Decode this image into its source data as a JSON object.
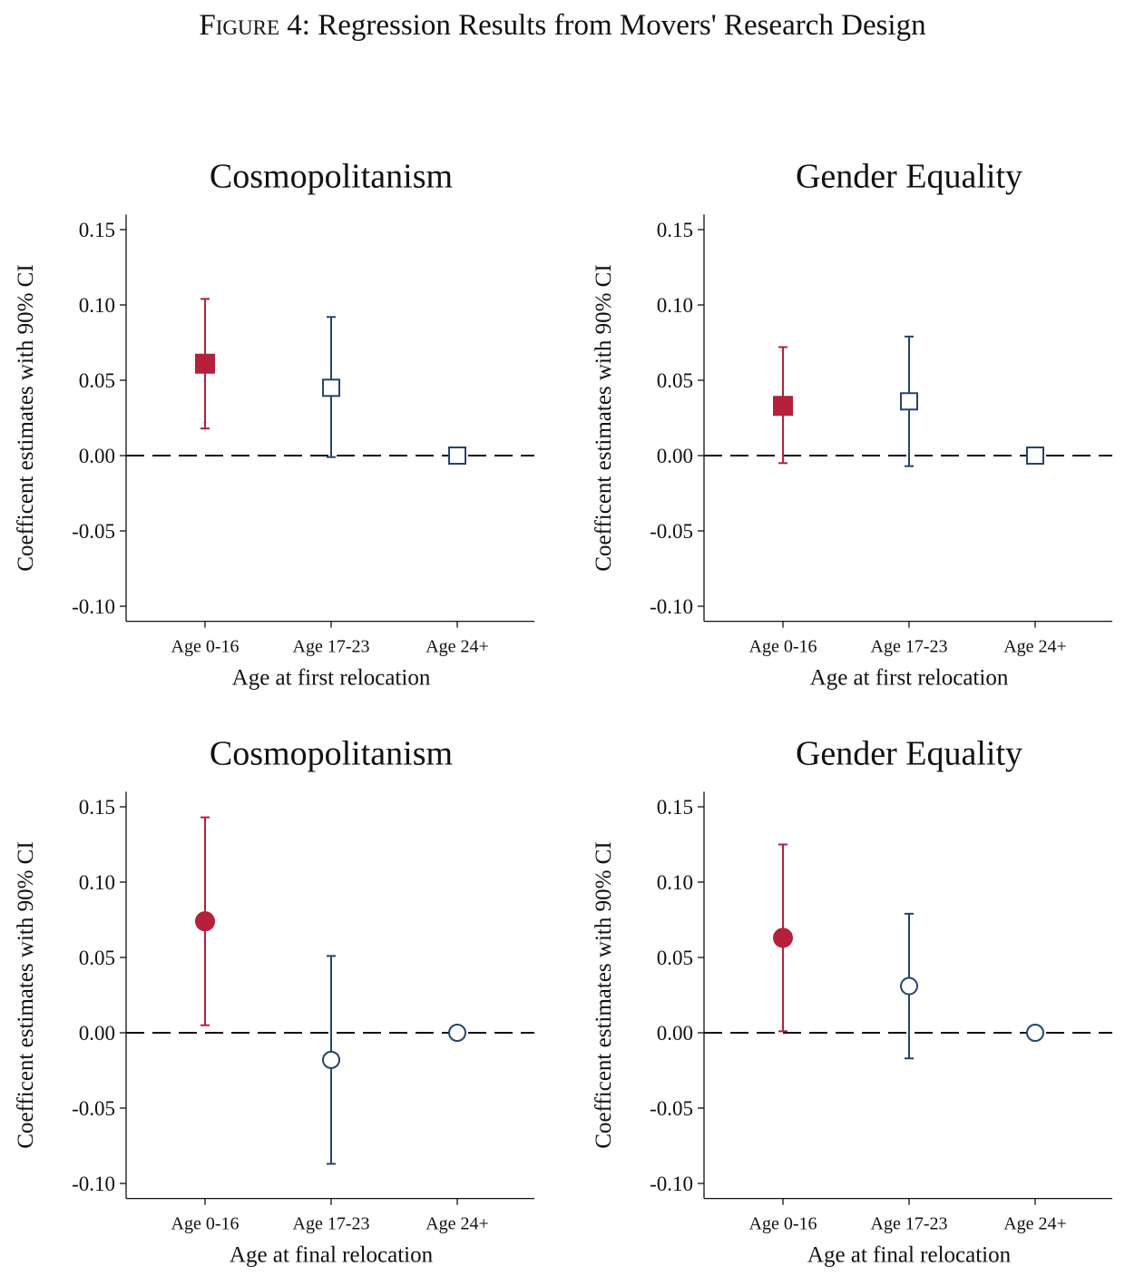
{
  "figure": {
    "label": "Figure 4:",
    "title": "Regression Results from Movers' Research Design"
  },
  "colors": {
    "significant": "#b5203a",
    "baseline": "#24446f",
    "axis": "#111111"
  },
  "chart_data": [
    {
      "type": "scatter-errorbar",
      "title": "Cosmopolitanism",
      "xlabel": "Age at first relocation",
      "ylabel": "Coefficent estimates with 90% CI",
      "marker": "square",
      "categories": [
        "Age 0-16",
        "Age 17-23",
        "Age 24+"
      ],
      "estimates": [
        0.061,
        0.045,
        0.0
      ],
      "ci_low": [
        0.018,
        -0.001,
        null
      ],
      "ci_high": [
        0.104,
        0.092,
        null
      ],
      "filled": [
        true,
        false,
        false
      ],
      "ylim": [
        -0.11,
        0.16
      ],
      "yticks": [
        "0.15",
        "0.10",
        "0.05",
        "0.00",
        "-0.05",
        "-0.10"
      ],
      "reference_line": 0.0
    },
    {
      "type": "scatter-errorbar",
      "title": "Gender Equality",
      "xlabel": "Age at first relocation",
      "ylabel": "Coefficent estimates with 90% CI",
      "marker": "square",
      "categories": [
        "Age 0-16",
        "Age 17-23",
        "Age 24+"
      ],
      "estimates": [
        0.033,
        0.036,
        0.0
      ],
      "ci_low": [
        -0.005,
        -0.007,
        null
      ],
      "ci_high": [
        0.072,
        0.079,
        null
      ],
      "filled": [
        true,
        false,
        false
      ],
      "ylim": [
        -0.11,
        0.16
      ],
      "yticks": [
        "0.15",
        "0.10",
        "0.05",
        "0.00",
        "-0.05",
        "-0.10"
      ],
      "reference_line": 0.0
    },
    {
      "type": "scatter-errorbar",
      "title": "Cosmopolitanism",
      "xlabel": "Age at final relocation",
      "ylabel": "Coefficent estimates with 90% CI",
      "marker": "circle",
      "categories": [
        "Age 0-16",
        "Age 17-23",
        "Age 24+"
      ],
      "estimates": [
        0.074,
        -0.018,
        0.0
      ],
      "ci_low": [
        0.005,
        -0.087,
        null
      ],
      "ci_high": [
        0.143,
        0.051,
        null
      ],
      "filled": [
        true,
        false,
        false
      ],
      "ylim": [
        -0.11,
        0.16
      ],
      "yticks": [
        "0.15",
        "0.10",
        "0.05",
        "0.00",
        "-0.05",
        "-0.10"
      ],
      "reference_line": 0.0
    },
    {
      "type": "scatter-errorbar",
      "title": "Gender Equality",
      "xlabel": "Age at final relocation",
      "ylabel": "Coefficent estimates with 90% CI",
      "marker": "circle",
      "categories": [
        "Age 0-16",
        "Age 17-23",
        "Age 24+"
      ],
      "estimates": [
        0.063,
        0.031,
        0.0
      ],
      "ci_low": [
        0.001,
        -0.017,
        null
      ],
      "ci_high": [
        0.125,
        0.079,
        null
      ],
      "filled": [
        true,
        false,
        false
      ],
      "ylim": [
        -0.11,
        0.16
      ],
      "yticks": [
        "0.15",
        "0.10",
        "0.05",
        "0.00",
        "-0.05",
        "-0.10"
      ],
      "reference_line": 0.0
    }
  ]
}
